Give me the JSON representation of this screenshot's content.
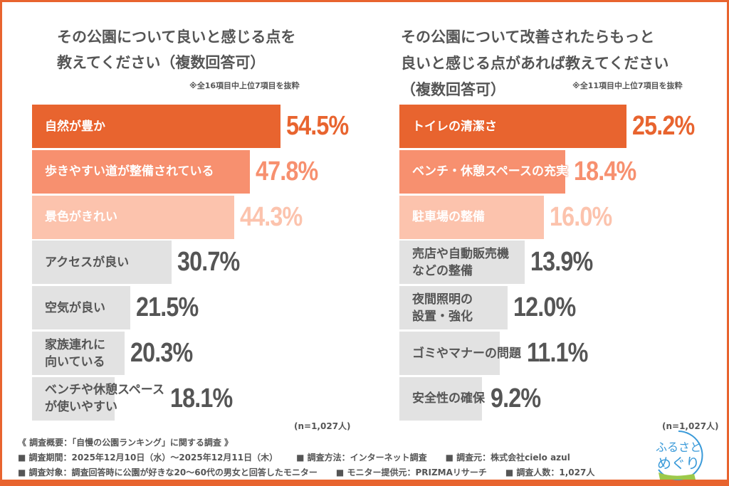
{
  "colors": {
    "frame": "#e8642f",
    "top": "#e8642f",
    "second": "#f7906f",
    "third": "#fcc3ad",
    "rest": "#e2e2e2",
    "rest_text": "#555555"
  },
  "left": {
    "title": "その公園について良いと感じる点を\n教えてください（複数回答可）",
    "note": "※全16項目中上位7項目を抜粋",
    "n": "(n=1,027人)"
  },
  "right": {
    "title": "その公園について改善されたらもっと\n良いと感じる点があれば教えてください\n（複数回答可）",
    "note": "※全11項目中上位7項目を抜粋",
    "n": "(n=1,027人)"
  },
  "chart_data": [
    {
      "type": "bar",
      "orientation": "horizontal",
      "unit": "%",
      "categories": [
        "自然が豊か",
        "歩きやすい道が整備されている",
        "景色がきれい",
        "アクセスが良い",
        "空気が良い",
        "家族連れに\n向いている",
        "ベンチや休憩スペース\nが使いやすい"
      ],
      "values": [
        54.5,
        47.8,
        44.3,
        30.7,
        21.5,
        20.3,
        18.1
      ],
      "labels": [
        "54.5%",
        "47.8%",
        "44.3%",
        "30.7%",
        "21.5%",
        "20.3%",
        "18.1%"
      ]
    },
    {
      "type": "bar",
      "orientation": "horizontal",
      "unit": "%",
      "categories": [
        "トイレの清潔さ",
        "ベンチ・休憩スペースの充実",
        "駐車場の整備",
        "売店や自動販売機\nなどの整備",
        "夜間照明の\n設置・強化",
        "ゴミやマナーの問題",
        "安全性の確保"
      ],
      "values": [
        25.2,
        18.4,
        16.0,
        13.9,
        12.0,
        11.1,
        9.2
      ],
      "labels": [
        "25.2%",
        "18.4%",
        "16.0%",
        "13.9%",
        "12.0%",
        "11.1%",
        "9.2%"
      ]
    }
  ],
  "footer": {
    "heading": "《 調査概要：「自慢の公園ランキング」に関する調査 》",
    "period": "■ 調査期間：2025年12月10日（水）～2025年12月11日（木）",
    "method": "■ 調査方法：インターネット調査",
    "source": "■ 調査元：株式会社cielo azul",
    "target": "■ 調査対象：調査回答時に公園が好きな20～60代の男女と回答したモニター",
    "provider": "■ モニター提供元：PRIZMAリサーチ",
    "count": "■ 調査人数：1,027人"
  },
  "logo": {
    "text": "ふるさとめぐり"
  }
}
